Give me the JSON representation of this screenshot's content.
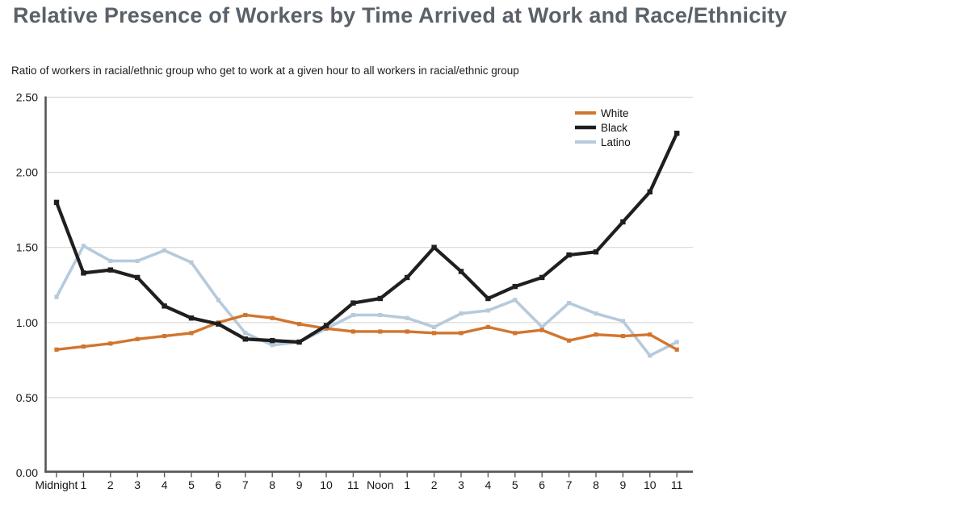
{
  "page": {
    "title": "Relative Presence of Workers by Time Arrived at Work and Race/Ethnicity",
    "subtitle": "Ratio of workers in racial/ethnic group who get to work at a given hour to all workers in racial/ethnic group"
  },
  "chart_data": {
    "type": "line",
    "title": "Relative Presence of Workers by Time Arrived at Work and Race/Ethnicity",
    "subtitle": "Ratio of workers in racial/ethnic group who get to work at a given hour to all workers in racial/ethnic group",
    "categories": [
      "Midnight",
      "1",
      "2",
      "3",
      "4",
      "5",
      "6",
      "7",
      "8",
      "9",
      "10",
      "11",
      "Noon",
      "1",
      "2",
      "3",
      "4",
      "5",
      "6",
      "7",
      "8",
      "9",
      "10",
      "11"
    ],
    "series": [
      {
        "name": "White",
        "color": "#d1752e",
        "values": [
          0.82,
          0.84,
          0.86,
          0.89,
          0.91,
          0.93,
          1.0,
          1.05,
          1.03,
          0.99,
          0.96,
          0.94,
          0.94,
          0.94,
          0.93,
          0.93,
          0.97,
          0.93,
          0.95,
          0.88,
          0.92,
          0.91,
          0.92,
          0.82
        ]
      },
      {
        "name": "Black",
        "color": "#1f1f1f",
        "values": [
          1.8,
          1.33,
          1.35,
          1.3,
          1.11,
          1.03,
          0.99,
          0.89,
          0.88,
          0.87,
          0.98,
          1.13,
          1.16,
          1.3,
          1.5,
          1.34,
          1.16,
          1.24,
          1.3,
          1.45,
          1.47,
          1.67,
          1.87,
          2.26
        ]
      },
      {
        "name": "Latino",
        "color": "#b6cadc",
        "values": [
          1.17,
          1.51,
          1.41,
          1.41,
          1.48,
          1.4,
          1.15,
          0.93,
          0.85,
          0.87,
          0.96,
          1.05,
          1.05,
          1.03,
          0.97,
          1.06,
          1.08,
          1.15,
          0.97,
          1.13,
          1.06,
          1.01,
          0.78,
          0.87
        ]
      }
    ],
    "ylim": [
      0,
      2.5
    ],
    "ytick_labels": [
      "0.00",
      "0.50",
      "1.00",
      "1.50",
      "2.00",
      "2.50"
    ],
    "grid": true,
    "legend_position": "top-right",
    "colors": {
      "axis": "#55585b",
      "grid": "#d8d8d8",
      "tick_text": "#161616",
      "title_text": "#5a6168"
    }
  }
}
